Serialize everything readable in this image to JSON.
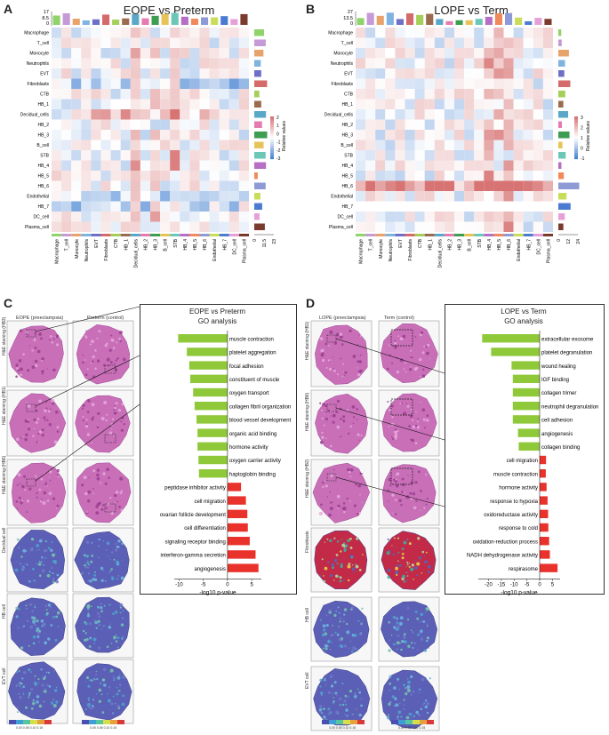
{
  "panels": {
    "A": {
      "letter": "A",
      "title": "EOPE vs Preterm"
    },
    "B": {
      "letter": "B",
      "title": "LOPE vs Term"
    },
    "C": {
      "letter": "C"
    },
    "D": {
      "letter": "D"
    }
  },
  "heatmap_rows": [
    "Macrophage",
    "T_cell",
    "Monocyte",
    "Neutrophils",
    "EVT",
    "Fibroblasts",
    "CTB",
    "HB_1",
    "Decidual_cells",
    "HB_2",
    "HB_3",
    "B_cell",
    "STB",
    "HB_4",
    "HB_5",
    "HB_6",
    "Endothelial",
    "HB_7",
    "DC_cell",
    "Plasma_cell"
  ],
  "heatmap_cols": [
    "Macrophage",
    "T_cell",
    "Monocyte",
    "Neutrophils",
    "EVT",
    "Fibroblasts",
    "CTB",
    "HB_1",
    "Decidual_cells",
    "HB_2",
    "HB_3",
    "B_cell",
    "STB",
    "HB_4",
    "HB_5",
    "HB_6",
    "Endothelial",
    "HB_7",
    "DC_cell",
    "Plasma_cell"
  ],
  "heatmapA": {
    "top_ticks": [
      "17",
      "8.5",
      "0"
    ],
    "side_ticks": [
      "0",
      "11.5",
      "23"
    ],
    "legend_ticks": [
      "2",
      "1",
      "0",
      "-1",
      "-2",
      "-3"
    ],
    "legend_title": "Relative values"
  },
  "heatmapB": {
    "top_ticks": [
      "27",
      "13.5",
      "0"
    ],
    "side_ticks": [
      "0",
      "12",
      "24"
    ],
    "legend_ticks": [
      "3",
      "2",
      "1",
      "0",
      "-1"
    ],
    "legend_title": "Relative values"
  },
  "panelC": {
    "col_headers": [
      "EOPE (preeclampsia)",
      "Preterm (control)"
    ],
    "he_labels": [
      "H&E staining (HB3)",
      "H&E staining (HB1)",
      "H&E staining (HB6)"
    ],
    "cell_labels": [
      "Decidual cell",
      "HB cell",
      "EVT cell"
    ],
    "colorbar_label": "0.00 0.05 0.10 0.15",
    "go_title": "EOPE vs Preterm",
    "go_subtitle": "GO analysis",
    "xlabel": "-log10 p-value",
    "xticks": [
      "-10",
      "-5",
      "0",
      "5"
    ]
  },
  "panelD": {
    "col_headers": [
      "LOPE (preeclampsia)",
      "Term (control)"
    ],
    "he_labels": [
      "H&E staining (HB1)",
      "H&E staining (HB6)",
      "H&E staining (HB2)"
    ],
    "cell_labels": [
      "Fibroblasts",
      "HB cell",
      "EVT cell"
    ],
    "colorbar_label": "0.00 0.05 0.10 0.15",
    "go_title": "LOPE vs Term",
    "go_subtitle": "GO analysis",
    "xlabel": "-log10 p-value",
    "xticks": [
      "-20",
      "-15",
      "-10",
      "-5",
      "0",
      "5"
    ]
  },
  "chart_data": [
    {
      "type": "bar",
      "title": "EOPE vs Preterm GO analysis",
      "xlabel": "-log10 p-value",
      "xlim": [
        -11,
        7
      ],
      "categories": [
        "muscle contraction",
        "platelet aggregation",
        "focal adhesion",
        "constituent of muscle",
        "oxygen transport",
        "collagen fibril organization",
        "blood vessel development",
        "organic acid binding",
        "hormone activity",
        "oxygen carrier activity",
        "haptoglobin binding",
        "peptidase inhibitor activity",
        "cell migration",
        "ovarian follicle development",
        "cell differentiation",
        "signaling receptor binding",
        "interferon-gamma secretion",
        "angiogenesis"
      ],
      "values": [
        -10.2,
        -8.4,
        -7.9,
        -7.7,
        -7.1,
        -6.8,
        -6.4,
        -6.2,
        -6.2,
        -6.0,
        -5.9,
        2.8,
        3.8,
        4.1,
        4.2,
        4.6,
        5.8,
        6.4
      ],
      "colors": {
        "negative": "#8fc93a",
        "positive": "#e8322b"
      }
    },
    {
      "type": "bar",
      "title": "LOPE vs Term GO analysis",
      "xlabel": "-log10 p-value",
      "xlim": [
        -24,
        8
      ],
      "categories": [
        "extracellular exosome",
        "platelet degranulation",
        "wound healing",
        "IGF binding",
        "collagen trimer",
        "neutrophil degranulation",
        "cell adhesion",
        "angiogenesis",
        "collagen binding",
        "cell migration",
        "muscle contraction",
        "hormone activity",
        "response to hypoxia",
        "oxidoreductase activity",
        "response to cold",
        "oxidation-reduction process",
        "NADH dehydrogenase activity",
        "respirasome"
      ],
      "values": [
        -22.5,
        -19.0,
        -11.0,
        -10.5,
        -10.5,
        -10.5,
        -10.5,
        -8.5,
        -8.2,
        2.5,
        2.4,
        2.7,
        3.1,
        3.3,
        3.4,
        3.7,
        4.0,
        7.0
      ],
      "colors": {
        "negative": "#8fc93a",
        "positive": "#e8322b"
      }
    }
  ]
}
